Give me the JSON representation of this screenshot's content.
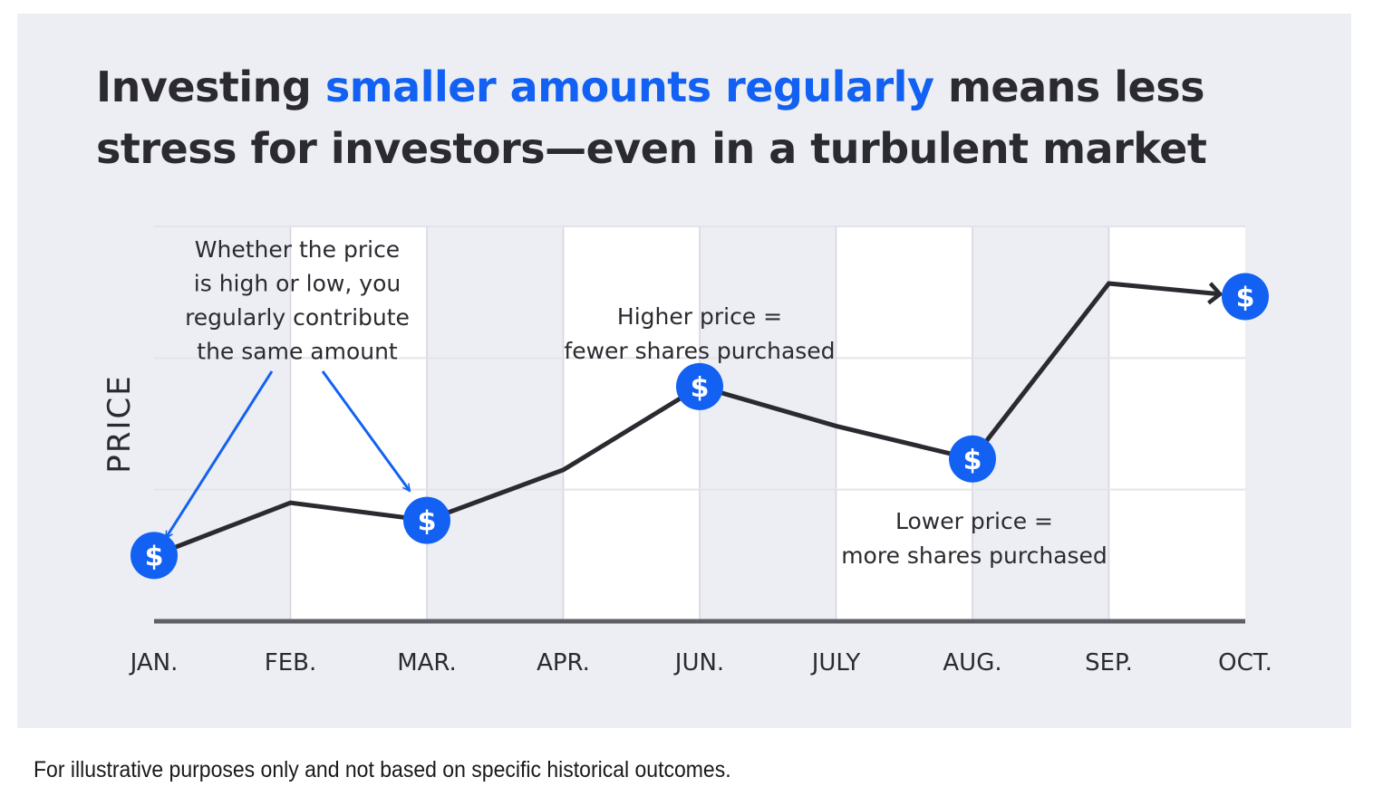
{
  "title": {
    "part1": "Investing ",
    "highlight": "smaller amounts regularly",
    "part2": " means less stress for investors—even in a turbulent market"
  },
  "footnote": "For illustrative purposes only and not based on specific historical outcomes.",
  "colors": {
    "panel": "#eceef3",
    "band": "#ffffff",
    "line": "#2b2a30",
    "accent": "#1261f2",
    "text": "#2b2a30"
  },
  "icons": {
    "marker": "dollar-coin-icon",
    "arrow": "arrow-icon"
  },
  "chart_data": {
    "type": "line",
    "ylabel": "PRICE",
    "xlabel": "",
    "categories": [
      "JAN.",
      "FEB.",
      "MAR.",
      "APR.",
      "JUN.",
      "JULY",
      "AUG.",
      "SEP.",
      "OCT."
    ],
    "values": [
      3.0,
      5.4,
      4.6,
      6.9,
      10.7,
      8.9,
      7.4,
      15.4,
      14.8
    ],
    "ylim": [
      0,
      18
    ],
    "grid": true,
    "marked_points": [
      0,
      2,
      4,
      6,
      8
    ],
    "annotations": [
      {
        "id": "contribute",
        "lines": [
          "Whether the price",
          "is high or low, you",
          "regularly contribute",
          "the same amount"
        ],
        "points_to": [
          0,
          2
        ]
      },
      {
        "id": "higher",
        "lines": [
          "Higher price =",
          "fewer shares purchased"
        ],
        "points_to": [
          4
        ]
      },
      {
        "id": "lower",
        "lines": [
          "Lower price =",
          "more shares purchased"
        ],
        "points_to": [
          6
        ]
      }
    ]
  }
}
